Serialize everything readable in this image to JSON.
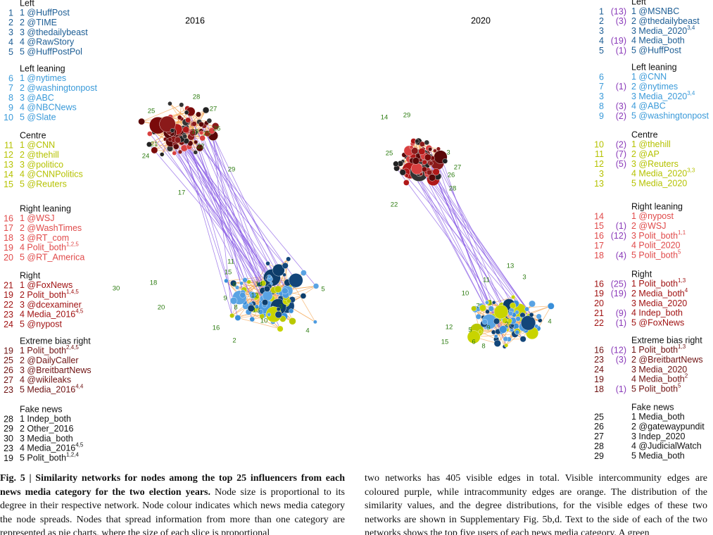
{
  "figure": {
    "years": [
      "2016",
      "2020"
    ],
    "network_2016": {
      "node_labels": [
        28,
        27,
        25,
        19,
        25,
        26,
        22,
        21,
        24,
        29,
        17,
        30,
        18,
        20,
        16,
        11,
        15,
        14,
        12,
        13,
        10,
        9,
        8,
        3,
        5,
        4,
        2,
        6
      ]
    },
    "network_2020": {
      "node_labels": [
        14,
        29,
        22,
        25,
        3,
        27,
        26,
        28,
        13,
        10,
        11,
        3,
        7,
        1,
        2,
        4,
        9,
        12,
        5,
        15,
        6,
        8
      ]
    },
    "left_panel": {
      "sections": [
        {
          "title": "Left",
          "items": [
            {
              "rank": 1,
              "text": "1 @HuffPost"
            },
            {
              "rank": 2,
              "text": "2 @TIME"
            },
            {
              "rank": 3,
              "text": "3 @thedailybeast"
            },
            {
              "rank": 4,
              "text": "4 @RawStory"
            },
            {
              "rank": 5,
              "text": "5 @HuffPostPol"
            }
          ]
        },
        {
          "title": "Left leaning",
          "items": [
            {
              "rank": 6,
              "text": "1 @nytimes"
            },
            {
              "rank": 7,
              "text": "2 @washingtonpost"
            },
            {
              "rank": 8,
              "text": "3 @ABC"
            },
            {
              "rank": 9,
              "text": "4 @NBCNews"
            },
            {
              "rank": 10,
              "text": "5 @Slate"
            }
          ]
        },
        {
          "title": "Centre",
          "items": [
            {
              "rank": 11,
              "text": "1 @CNN"
            },
            {
              "rank": 12,
              "text": "2 @thehill"
            },
            {
              "rank": 13,
              "text": "3 @politico"
            },
            {
              "rank": 14,
              "text": "4 @CNNPolitics"
            },
            {
              "rank": 15,
              "text": "5 @Reuters"
            }
          ]
        },
        {
          "title": "Right leaning",
          "items": [
            {
              "rank": 16,
              "text": "1 @WSJ"
            },
            {
              "rank": 17,
              "text": "2 @WashTimes"
            },
            {
              "rank": 18,
              "text": "3 @RT_com"
            },
            {
              "rank": 19,
              "text": "4 Polit_both",
              "sup": "1,2,5"
            },
            {
              "rank": 20,
              "text": "5 @RT_America"
            }
          ]
        },
        {
          "title": "Right",
          "items": [
            {
              "rank": 21,
              "text": "1 @FoxNews"
            },
            {
              "rank": 19,
              "text": "2 Polit_both",
              "sup": "1,4,5"
            },
            {
              "rank": 22,
              "text": "3 @dcexaminer"
            },
            {
              "rank": 23,
              "text": "4 Media_2016",
              "sup": "4,5"
            },
            {
              "rank": 24,
              "text": "5 @nypost"
            }
          ]
        },
        {
          "title": "Extreme bias right",
          "items": [
            {
              "rank": 19,
              "text": "1 Polit_both",
              "sup": "2,4,5"
            },
            {
              "rank": 25,
              "text": "2 @DailyCaller"
            },
            {
              "rank": 26,
              "text": "3 @BreitbartNews"
            },
            {
              "rank": 27,
              "text": "4 @wikileaks"
            },
            {
              "rank": 23,
              "text": "5 Media_2016",
              "sup": "4,4"
            }
          ]
        },
        {
          "title": "Fake news",
          "items": [
            {
              "rank": 28,
              "text": "1 Indep_both"
            },
            {
              "rank": 29,
              "text": "2 Other_2016"
            },
            {
              "rank": 30,
              "text": "3 Media_both"
            },
            {
              "rank": 23,
              "text": "4 Media_2016",
              "sup": "4,5"
            },
            {
              "rank": 19,
              "text": "5 Polit_both",
              "sup": "1,2,4"
            }
          ]
        }
      ]
    },
    "right_panel": {
      "sections": [
        {
          "title": "Left",
          "items": [
            {
              "rank": 1,
              "count": "(13)",
              "text": "1 @MSNBC"
            },
            {
              "rank": 2,
              "count": "(3)",
              "text": "2 @thedailybeast"
            },
            {
              "rank": 3,
              "text": "3 Media_2020",
              "sup": "3,4"
            },
            {
              "rank": 4,
              "count": "(19)",
              "text": "4 Media_both"
            },
            {
              "rank": 5,
              "count": "(1)",
              "text": "5 @HuffPost"
            }
          ]
        },
        {
          "title": "Left leaning",
          "items": [
            {
              "rank": 6,
              "text": "1 @CNN"
            },
            {
              "rank": 7,
              "count": "(1)",
              "text": "2 @nytimes"
            },
            {
              "rank": 3,
              "text": "3 Media_2020",
              "sup": "3,4"
            },
            {
              "rank": 8,
              "count": "(3)",
              "text": "4 @ABC"
            },
            {
              "rank": 9,
              "count": "(2)",
              "text": "5 @washingtonpost"
            }
          ]
        },
        {
          "title": "Centre",
          "items": [
            {
              "rank": 10,
              "count": "(2)",
              "text": "1 @thehill"
            },
            {
              "rank": 11,
              "count": "(7)",
              "text": "2 @AP"
            },
            {
              "rank": 12,
              "count": "(5)",
              "text": "3 @Reuters"
            },
            {
              "rank": 3,
              "text": "4 Media_2020",
              "sup": "3,3"
            },
            {
              "rank": 13,
              "text": "5 Media_2020"
            }
          ]
        },
        {
          "title": "Right leaning",
          "items": [
            {
              "rank": 14,
              "text": "1 @nypost"
            },
            {
              "rank": 15,
              "count": "(1)",
              "text": "2 @WSJ"
            },
            {
              "rank": 16,
              "count": "(12)",
              "text": "3 Polit_both",
              "sup": "1,1"
            },
            {
              "rank": 17,
              "text": "4 Polit_2020"
            },
            {
              "rank": 18,
              "count": "(4)",
              "text": "5 Polit_both",
              "sup": "5"
            }
          ]
        },
        {
          "title": "Right",
          "items": [
            {
              "rank": 16,
              "count": "(25)",
              "text": "1 Polit_both",
              "sup": "1,3"
            },
            {
              "rank": 19,
              "count": "(19)",
              "text": "2 Media_both",
              "sup": "4"
            },
            {
              "rank": 20,
              "text": "3 Media_2020"
            },
            {
              "rank": 21,
              "count": "(9)",
              "text": "4 Indep_both"
            },
            {
              "rank": 22,
              "count": "(1)",
              "text": "5 @FoxNews"
            }
          ]
        },
        {
          "title": "Extreme bias right",
          "items": [
            {
              "rank": 16,
              "count": "(12)",
              "text": "1 Polit_both",
              "sup": "1,3"
            },
            {
              "rank": 23,
              "count": "(3)",
              "text": "2 @BreitbartNews"
            },
            {
              "rank": 24,
              "text": "3 Media_2020"
            },
            {
              "rank": 19,
              "text": "4 Media_both",
              "sup": "2"
            },
            {
              "rank": 18,
              "count": "(1)",
              "text": "5 Polit_both",
              "sup": "5"
            }
          ]
        },
        {
          "title": "Fake news",
          "items": [
            {
              "rank": 25,
              "text": "1 Media_both"
            },
            {
              "rank": 26,
              "text": "2 @gatewaypundit"
            },
            {
              "rank": 27,
              "text": "3 Indep_2020"
            },
            {
              "rank": 28,
              "text": "4 @JudicialWatch"
            },
            {
              "rank": 29,
              "text": "5 Media_both"
            }
          ]
        }
      ]
    }
  },
  "caption": {
    "bold": "Fig. 5 | Similarity networks for nodes among the top 25 influencers from each news media category for the two election years.",
    "col1": "Node size is proportional to its degree in their respective network. Node colour indicates which news media category the node spreads. Nodes that spread information from more than one category are represented as pie charts, where the size of each slice is proportional",
    "col2": "two networks has 405 visible edges in total. Visible intercommunity edges are coloured purple, while intracommunity edges are orange. The distribution of the similarity values, and the degree distributions, for the visible edges of these two networks are shown in Supplementary Fig. 5b,d. Text to the side of each of the two networks shows the top five users of each news media category. A green"
  }
}
